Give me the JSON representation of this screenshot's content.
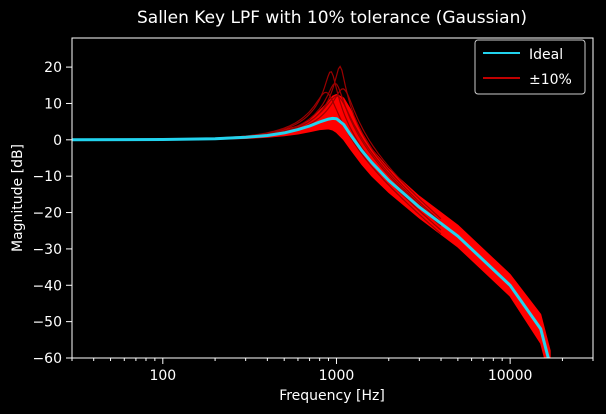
{
  "chart_data": {
    "type": "line",
    "title": "Sallen Key LPF with 10% tolerance (Gaussian)",
    "xlabel": "Frequency [Hz]",
    "ylabel": "Magnitude [dB]",
    "xscale": "log",
    "xlim": [
      30,
      30000
    ],
    "ylim": [
      -60,
      28
    ],
    "xticks": [
      100,
      1000,
      10000
    ],
    "xtick_labels": [
      "100",
      "1000",
      "10000"
    ],
    "yticks": [
      -60,
      -50,
      -40,
      -30,
      -20,
      -10,
      0,
      10,
      20
    ],
    "ytick_labels": [
      "−60",
      "−50",
      "−40",
      "−30",
      "−20",
      "−10",
      "0",
      "10",
      "20"
    ],
    "legend_position": "top-right",
    "series": [
      {
        "name": "Ideal",
        "color": "#22d3ee",
        "x": [
          30,
          100,
          200,
          300,
          400,
          500,
          600,
          700,
          800,
          900,
          950,
          1000,
          1100,
          1200,
          1400,
          1600,
          2000,
          3000,
          5000,
          10000,
          15000,
          17000
        ],
        "y": [
          0,
          0.1,
          0.3,
          0.7,
          1.2,
          1.9,
          2.8,
          3.8,
          4.9,
          5.7,
          5.9,
          5.8,
          4.2,
          1.5,
          -3.0,
          -6.3,
          -11.2,
          -18.5,
          -26.5,
          -40.0,
          -52.0,
          -62.0
        ]
      },
      {
        "name": "±10%",
        "color": "#ff0000",
        "band_upper": [
          0,
          0.15,
          0.5,
          1.0,
          1.8,
          2.7,
          3.8,
          5.3,
          8.0,
          10.5,
          12.0,
          12.5,
          11.5,
          8.5,
          2.0,
          -2.5,
          -8.0,
          -15.5,
          -23.5,
          -37.0,
          -48.0,
          -58.0
        ],
        "band_lower": [
          0,
          0.05,
          0.15,
          0.35,
          0.7,
          1.1,
          1.6,
          2.2,
          2.8,
          3.0,
          2.7,
          2.0,
          0.0,
          -2.5,
          -6.8,
          -10.0,
          -14.5,
          -21.5,
          -29.5,
          -43.0,
          -56.0,
          -66.0
        ],
        "peak_traces": [
          {
            "f0": 930,
            "peak": 18.8
          },
          {
            "f0": 1050,
            "peak": 20.2
          },
          {
            "f0": 990,
            "peak": 15.5
          },
          {
            "f0": 1100,
            "peak": 14.0
          },
          {
            "f0": 880,
            "peak": 13.0
          },
          {
            "f0": 1020,
            "peak": 12.0
          }
        ]
      }
    ]
  }
}
